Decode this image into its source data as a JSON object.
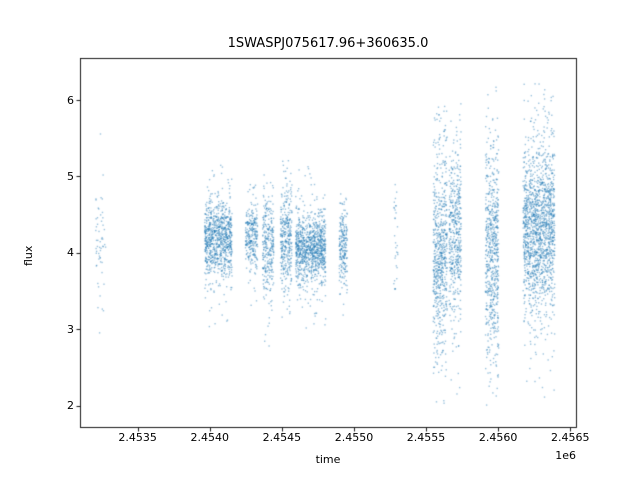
{
  "chart_data": {
    "type": "scatter",
    "title": "1SWASPJ075617.96+360635.0",
    "xlabel": "time",
    "ylabel": "flux",
    "x_offset_label": "1e6",
    "xlim": [
      2453100,
      2456540
    ],
    "ylim": [
      1.72,
      6.55
    ],
    "grid": false,
    "legend": null,
    "marker_color": "#1f77b4",
    "marker_alpha": 0.45,
    "xticks": {
      "values": [
        2453500,
        2454000,
        2454500,
        2455000,
        2455500,
        2456000,
        2456500
      ],
      "labels": [
        "2.4535",
        "2.4540",
        "2.4545",
        "2.4550",
        "2.4555",
        "2.4560",
        "2.4565"
      ]
    },
    "yticks": {
      "values": [
        2,
        3,
        4,
        5,
        6
      ],
      "labels": [
        "2",
        "3",
        "4",
        "5",
        "6"
      ]
    },
    "clusters": [
      {
        "x": 2453244,
        "hw": 35,
        "n": 55,
        "mean": 4.2,
        "core_sd": 0.3,
        "tail_sd": 0.85,
        "core_frac": 0.7,
        "fmin": 2.45,
        "fmax": 5.9
      },
      {
        "x": 2454060,
        "hw": 95,
        "n": 900,
        "mean": 4.2,
        "core_sd": 0.22,
        "tail_sd": 0.5,
        "core_frac": 0.75,
        "fmin": 2.4,
        "fmax": 5.15
      },
      {
        "x": 2454290,
        "hw": 42,
        "n": 280,
        "mean": 4.25,
        "core_sd": 0.22,
        "tail_sd": 0.42,
        "core_frac": 0.75,
        "fmin": 3.2,
        "fmax": 5.0
      },
      {
        "x": 2454405,
        "hw": 38,
        "n": 300,
        "mean": 4.1,
        "core_sd": 0.28,
        "tail_sd": 0.6,
        "core_frac": 0.72,
        "fmin": 2.2,
        "fmax": 5.05
      },
      {
        "x": 2454530,
        "hw": 40,
        "n": 350,
        "mean": 4.15,
        "core_sd": 0.3,
        "tail_sd": 0.55,
        "core_frac": 0.72,
        "fmin": 2.9,
        "fmax": 5.25
      },
      {
        "x": 2454700,
        "hw": 104,
        "n": 1000,
        "mean": 4.05,
        "core_sd": 0.2,
        "tail_sd": 0.45,
        "core_frac": 0.75,
        "fmin": 2.85,
        "fmax": 5.3
      },
      {
        "x": 2454926,
        "hw": 28,
        "n": 220,
        "mean": 4.1,
        "core_sd": 0.25,
        "tail_sd": 0.4,
        "core_frac": 0.75,
        "fmin": 3.0,
        "fmax": 4.85
      },
      {
        "x": 2455290,
        "hw": 14,
        "n": 30,
        "mean": 4.1,
        "core_sd": 0.35,
        "tail_sd": 0.5,
        "core_frac": 0.7,
        "fmin": 3.3,
        "fmax": 4.9
      },
      {
        "x": 2455598,
        "hw": 48,
        "n": 650,
        "mean": 4.0,
        "core_sd": 0.55,
        "tail_sd": 1.05,
        "core_frac": 0.65,
        "fmin": 1.9,
        "fmax": 6.0
      },
      {
        "x": 2455702,
        "hw": 42,
        "n": 470,
        "mean": 4.2,
        "core_sd": 0.5,
        "tail_sd": 0.95,
        "core_frac": 0.65,
        "fmin": 2.05,
        "fmax": 5.95
      },
      {
        "x": 2455958,
        "hw": 46,
        "n": 650,
        "mean": 4.0,
        "core_sd": 0.6,
        "tail_sd": 1.1,
        "core_frac": 0.62,
        "fmin": 1.9,
        "fmax": 6.25
      },
      {
        "x": 2456283,
        "hw": 110,
        "n": 1600,
        "mean": 4.3,
        "core_sd": 0.45,
        "tail_sd": 0.85,
        "core_frac": 0.68,
        "fmin": 2.0,
        "fmax": 6.3
      }
    ]
  }
}
